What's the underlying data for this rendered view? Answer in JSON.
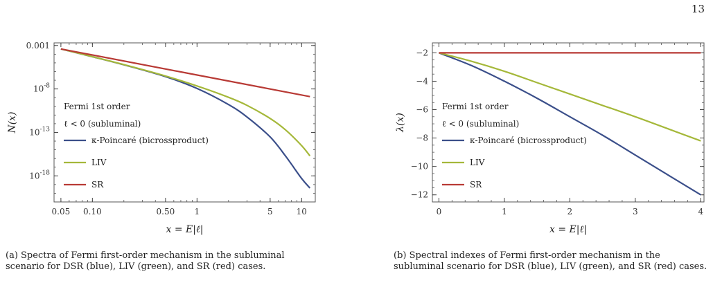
{
  "page_number": "13",
  "colors": {
    "dsr": "#3b4f8a",
    "liv": "#a5b83a",
    "sr": "#b83a35"
  },
  "chart_data": [
    {
      "type": "line",
      "id": "a",
      "xscale": "log",
      "yscale": "log",
      "xlim": [
        0.043,
        13.5
      ],
      "ylim": [
        1e-21,
        0.002
      ],
      "xlabel": "x = E|ℓ|",
      "ylabel": "N(x)",
      "x_ticks": [
        {
          "v": 0.05,
          "label": "0.05"
        },
        {
          "v": 0.1,
          "label": "0.10"
        },
        {
          "v": 0.5,
          "label": "0.50"
        },
        {
          "v": 1,
          "label": "1"
        },
        {
          "v": 5,
          "label": "5"
        },
        {
          "v": 10,
          "label": "10"
        }
      ],
      "y_ticks": [
        {
          "v": 0.001,
          "label": "0.001"
        },
        {
          "v": 1e-08,
          "label": "10",
          "sup": "-8"
        },
        {
          "v": 1e-13,
          "label": "10",
          "sup": "-13"
        },
        {
          "v": 1e-18,
          "label": "10",
          "sup": "-18"
        }
      ],
      "annotation": [
        "Fermi 1st order",
        "ℓ < 0 (subluminal)"
      ],
      "legend": [
        "κ-Poincaré (bicrossproduct)",
        "LIV",
        "SR"
      ],
      "legend_placement": "left",
      "series": [
        {
          "name": "κ-Poincaré (bicrossproduct)",
          "color_key": "dsr",
          "x": [
            0.05,
            0.1,
            0.2,
            0.5,
            1,
            2,
            3,
            5,
            7,
            10,
            12
          ],
          "y": [
            0.0004,
            5.1e-05,
            6e-06,
            2.6e-07,
            1.15e-08,
            1.6e-10,
            6e-12,
            3e-14,
            2e-16,
            5e-19,
            4e-20
          ]
        },
        {
          "name": "LIV",
          "color_key": "liv",
          "x": [
            0.05,
            0.1,
            0.2,
            0.5,
            1,
            2,
            3,
            5,
            7,
            10,
            12
          ],
          "y": [
            0.0004,
            5.2e-05,
            6.3e-06,
            3.1e-07,
            2.2e-08,
            1.1e-09,
            1.3e-10,
            4e-12,
            2e-13,
            3e-15,
            2e-16
          ]
        },
        {
          "name": "SR",
          "color_key": "sr",
          "x": [
            0.05,
            12
          ],
          "y": [
            0.0004,
            1.32e-09
          ]
        }
      ]
    },
    {
      "type": "line",
      "id": "b",
      "xscale": "linear",
      "yscale": "linear",
      "xlim": [
        -0.1,
        4.05
      ],
      "ylim": [
        -12.5,
        -1.3
      ],
      "xlabel": "x = E|ℓ|",
      "ylabel": "λ(x)",
      "x_ticks": [
        {
          "v": 0,
          "label": "0"
        },
        {
          "v": 1,
          "label": "1"
        },
        {
          "v": 2,
          "label": "2"
        },
        {
          "v": 3,
          "label": "3"
        },
        {
          "v": 4,
          "label": "4"
        }
      ],
      "y_ticks": [
        {
          "v": -2,
          "label": "−2"
        },
        {
          "v": -4,
          "label": "−4"
        },
        {
          "v": -6,
          "label": "−6"
        },
        {
          "v": -8,
          "label": "−8"
        },
        {
          "v": -10,
          "label": "−10"
        },
        {
          "v": -12,
          "label": "−12"
        }
      ],
      "annotation": [
        "Fermi 1st order",
        "ℓ < 0 (subluminal)"
      ],
      "legend": [
        "κ-Poincaré (bicrossproduct)",
        "LIV",
        "SR"
      ],
      "legend_placement": "left",
      "series": [
        {
          "name": "κ-Poincaré (bicrossproduct)",
          "color_key": "dsr",
          "x": [
            0,
            0.5,
            1,
            1.5,
            2,
            2.5,
            3,
            3.5,
            4
          ],
          "y": [
            -2,
            -2.9,
            -4.0,
            -5.2,
            -6.5,
            -7.8,
            -9.2,
            -10.6,
            -12.0
          ]
        },
        {
          "name": "LIV",
          "color_key": "liv",
          "x": [
            0,
            0.5,
            1,
            1.5,
            2,
            2.5,
            3,
            3.5,
            4
          ],
          "y": [
            -2,
            -2.6,
            -3.3,
            -4.1,
            -4.9,
            -5.7,
            -6.5,
            -7.35,
            -8.2
          ]
        },
        {
          "name": "SR",
          "color_key": "sr",
          "x": [
            0,
            4
          ],
          "y": [
            -2,
            -2
          ]
        }
      ]
    }
  ],
  "captions": {
    "a": "(a) Spectra of Fermi first-order mechanism in the subluminal scenario for DSR (blue), LIV (green), and SR (red) cases.",
    "b": "(b) Spectral indexes of Fermi first-order mechanism in the subluminal scenario for DSR (blue), LIV (green), and SR (red) cases."
  }
}
